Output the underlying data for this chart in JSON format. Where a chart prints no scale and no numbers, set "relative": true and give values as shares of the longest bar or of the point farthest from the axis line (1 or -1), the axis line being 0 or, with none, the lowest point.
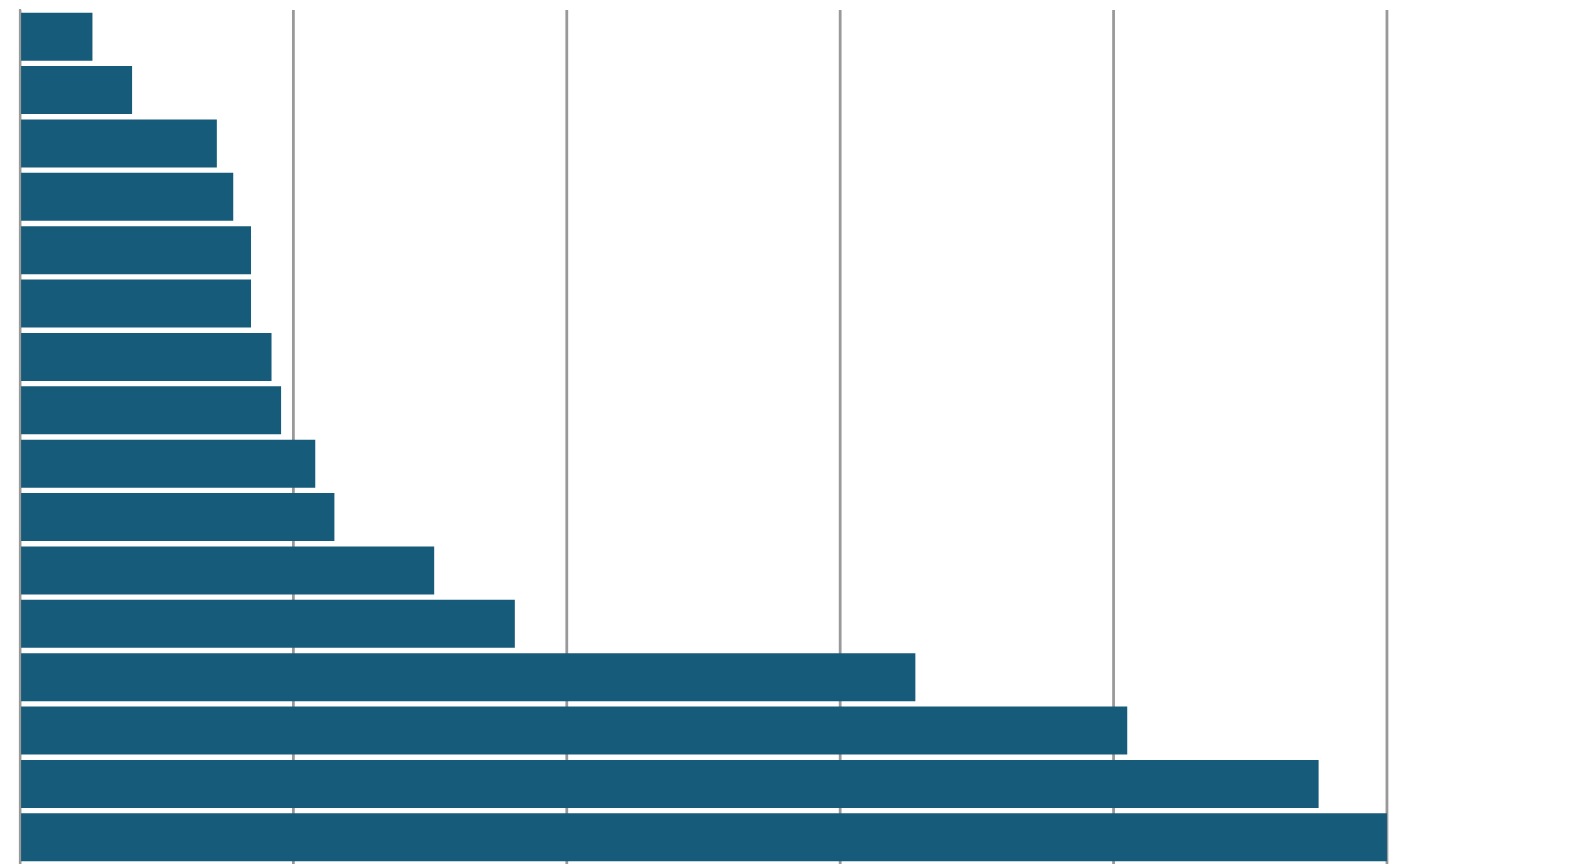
{
  "chart_data": {
    "type": "bar",
    "orientation": "horizontal",
    "relative": true,
    "categories": [
      null,
      null,
      null,
      null,
      null,
      null,
      null,
      null,
      null,
      null,
      null,
      null,
      null,
      null,
      null,
      null
    ],
    "values": [
      0.053,
      0.082,
      0.144,
      0.156,
      0.169,
      0.169,
      0.184,
      0.191,
      0.216,
      0.23,
      0.303,
      0.362,
      0.655,
      0.81,
      0.95,
      1
    ],
    "color": "#175b7a",
    "grid": "x"
  }
}
